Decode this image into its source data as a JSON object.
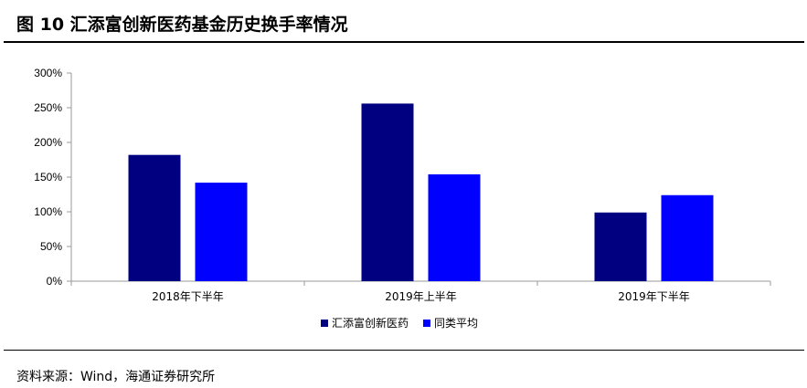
{
  "header": {
    "title": "图 10  汇添富创新医药基金历史换手率情况"
  },
  "footer": {
    "source": "资料来源：Wind，海通证券研究所"
  },
  "chart_data": {
    "type": "bar",
    "categories": [
      "2018年下半年",
      "2019年上半年",
      "2019年下半年"
    ],
    "series": [
      {
        "name": "汇添富创新医药",
        "values": [
          182,
          256,
          99
        ],
        "color": "#000080"
      },
      {
        "name": "同类平均",
        "values": [
          142,
          154,
          124
        ],
        "color": "#0000FF"
      }
    ],
    "ylim": [
      0,
      300
    ],
    "yticks": [
      0,
      50,
      100,
      150,
      200,
      250,
      300
    ],
    "ytick_labels": [
      "0%",
      "50%",
      "100%",
      "150%",
      "200%",
      "250%",
      "300%"
    ],
    "grid": false,
    "legend_position": "bottom-center"
  }
}
